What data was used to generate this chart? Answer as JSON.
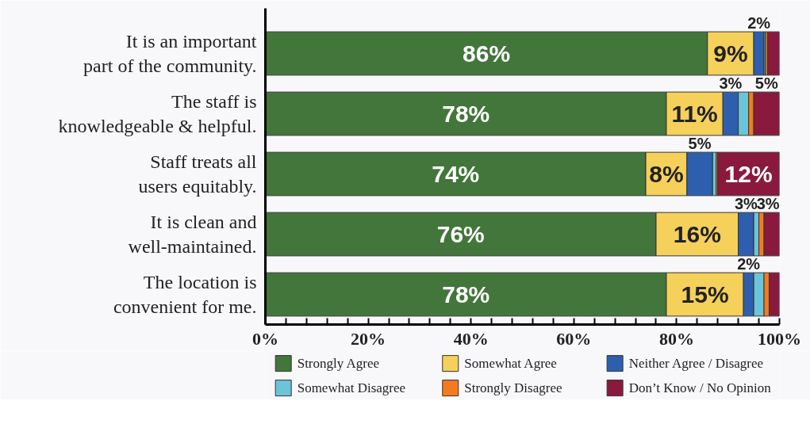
{
  "chart_data": {
    "type": "bar",
    "orientation": "horizontal",
    "stacked": true,
    "categories": [
      "It is an important\npart of the community.",
      "The staff is\nknowledgeable & helpful.",
      "Staff treats all\nusers equitably.",
      "It is clean and\nwell-maintained.",
      "The location is\nconvenient for me."
    ],
    "series": [
      {
        "name": "Strongly Agree",
        "color": "#42763a",
        "values": [
          86,
          78,
          74,
          76,
          78
        ],
        "value_labels": [
          "86%",
          "78%",
          "74%",
          "76%",
          "78%"
        ]
      },
      {
        "name": "Somewhat Agree",
        "color": "#f5d05a",
        "values": [
          9,
          11,
          8,
          16,
          15
        ],
        "value_labels": [
          "9%",
          "11%",
          "8%",
          "16%",
          "15%"
        ]
      },
      {
        "name": "Neither Agree / Disagree",
        "color": "#2e5fae",
        "values": [
          2,
          3,
          5,
          3,
          2
        ],
        "value_labels": [
          "2%",
          "3%",
          "5%",
          "3%",
          "2%"
        ]
      },
      {
        "name": "Somewhat Disagree",
        "color": "#6cc4d8",
        "values": [
          0.3,
          2,
          0.7,
          1,
          2
        ]
      },
      {
        "name": "Strongly Disagree",
        "color": "#f47a20",
        "values": [
          0.4,
          1,
          0.3,
          1,
          1
        ]
      },
      {
        "name": "Don’t Know / No Opinion",
        "color": "#8a1a3d",
        "values": [
          2.3,
          5,
          12,
          3,
          2
        ],
        "value_labels": [
          null,
          "5%",
          "12%",
          "3%",
          null
        ]
      }
    ],
    "xlim": [
      0,
      100
    ],
    "xticks": [
      {
        "value": 0,
        "label": "0%"
      },
      {
        "value": 4,
        "label": null
      },
      {
        "value": 8,
        "label": null
      },
      {
        "value": 12,
        "label": null
      },
      {
        "value": 16,
        "label": null
      },
      {
        "value": 20,
        "label": "20%"
      },
      {
        "value": 24,
        "label": null
      },
      {
        "value": 28,
        "label": null
      },
      {
        "value": 32,
        "label": null
      },
      {
        "value": 36,
        "label": null
      },
      {
        "value": 40,
        "label": "40%"
      },
      {
        "value": 44,
        "label": null
      },
      {
        "value": 48,
        "label": null
      },
      {
        "value": 52,
        "label": null
      },
      {
        "value": 56,
        "label": null
      },
      {
        "value": 60,
        "label": "60%"
      },
      {
        "value": 64,
        "label": null
      },
      {
        "value": 68,
        "label": null
      },
      {
        "value": 72,
        "label": null
      },
      {
        "value": 76,
        "label": null
      },
      {
        "value": 80,
        "label": "80%"
      },
      {
        "value": 84,
        "label": null
      },
      {
        "value": 88,
        "label": null
      },
      {
        "value": 92,
        "label": null
      },
      {
        "value": 96,
        "label": null
      },
      {
        "value": 100,
        "label": "100%"
      }
    ],
    "grid": false,
    "legend": "bottom"
  }
}
